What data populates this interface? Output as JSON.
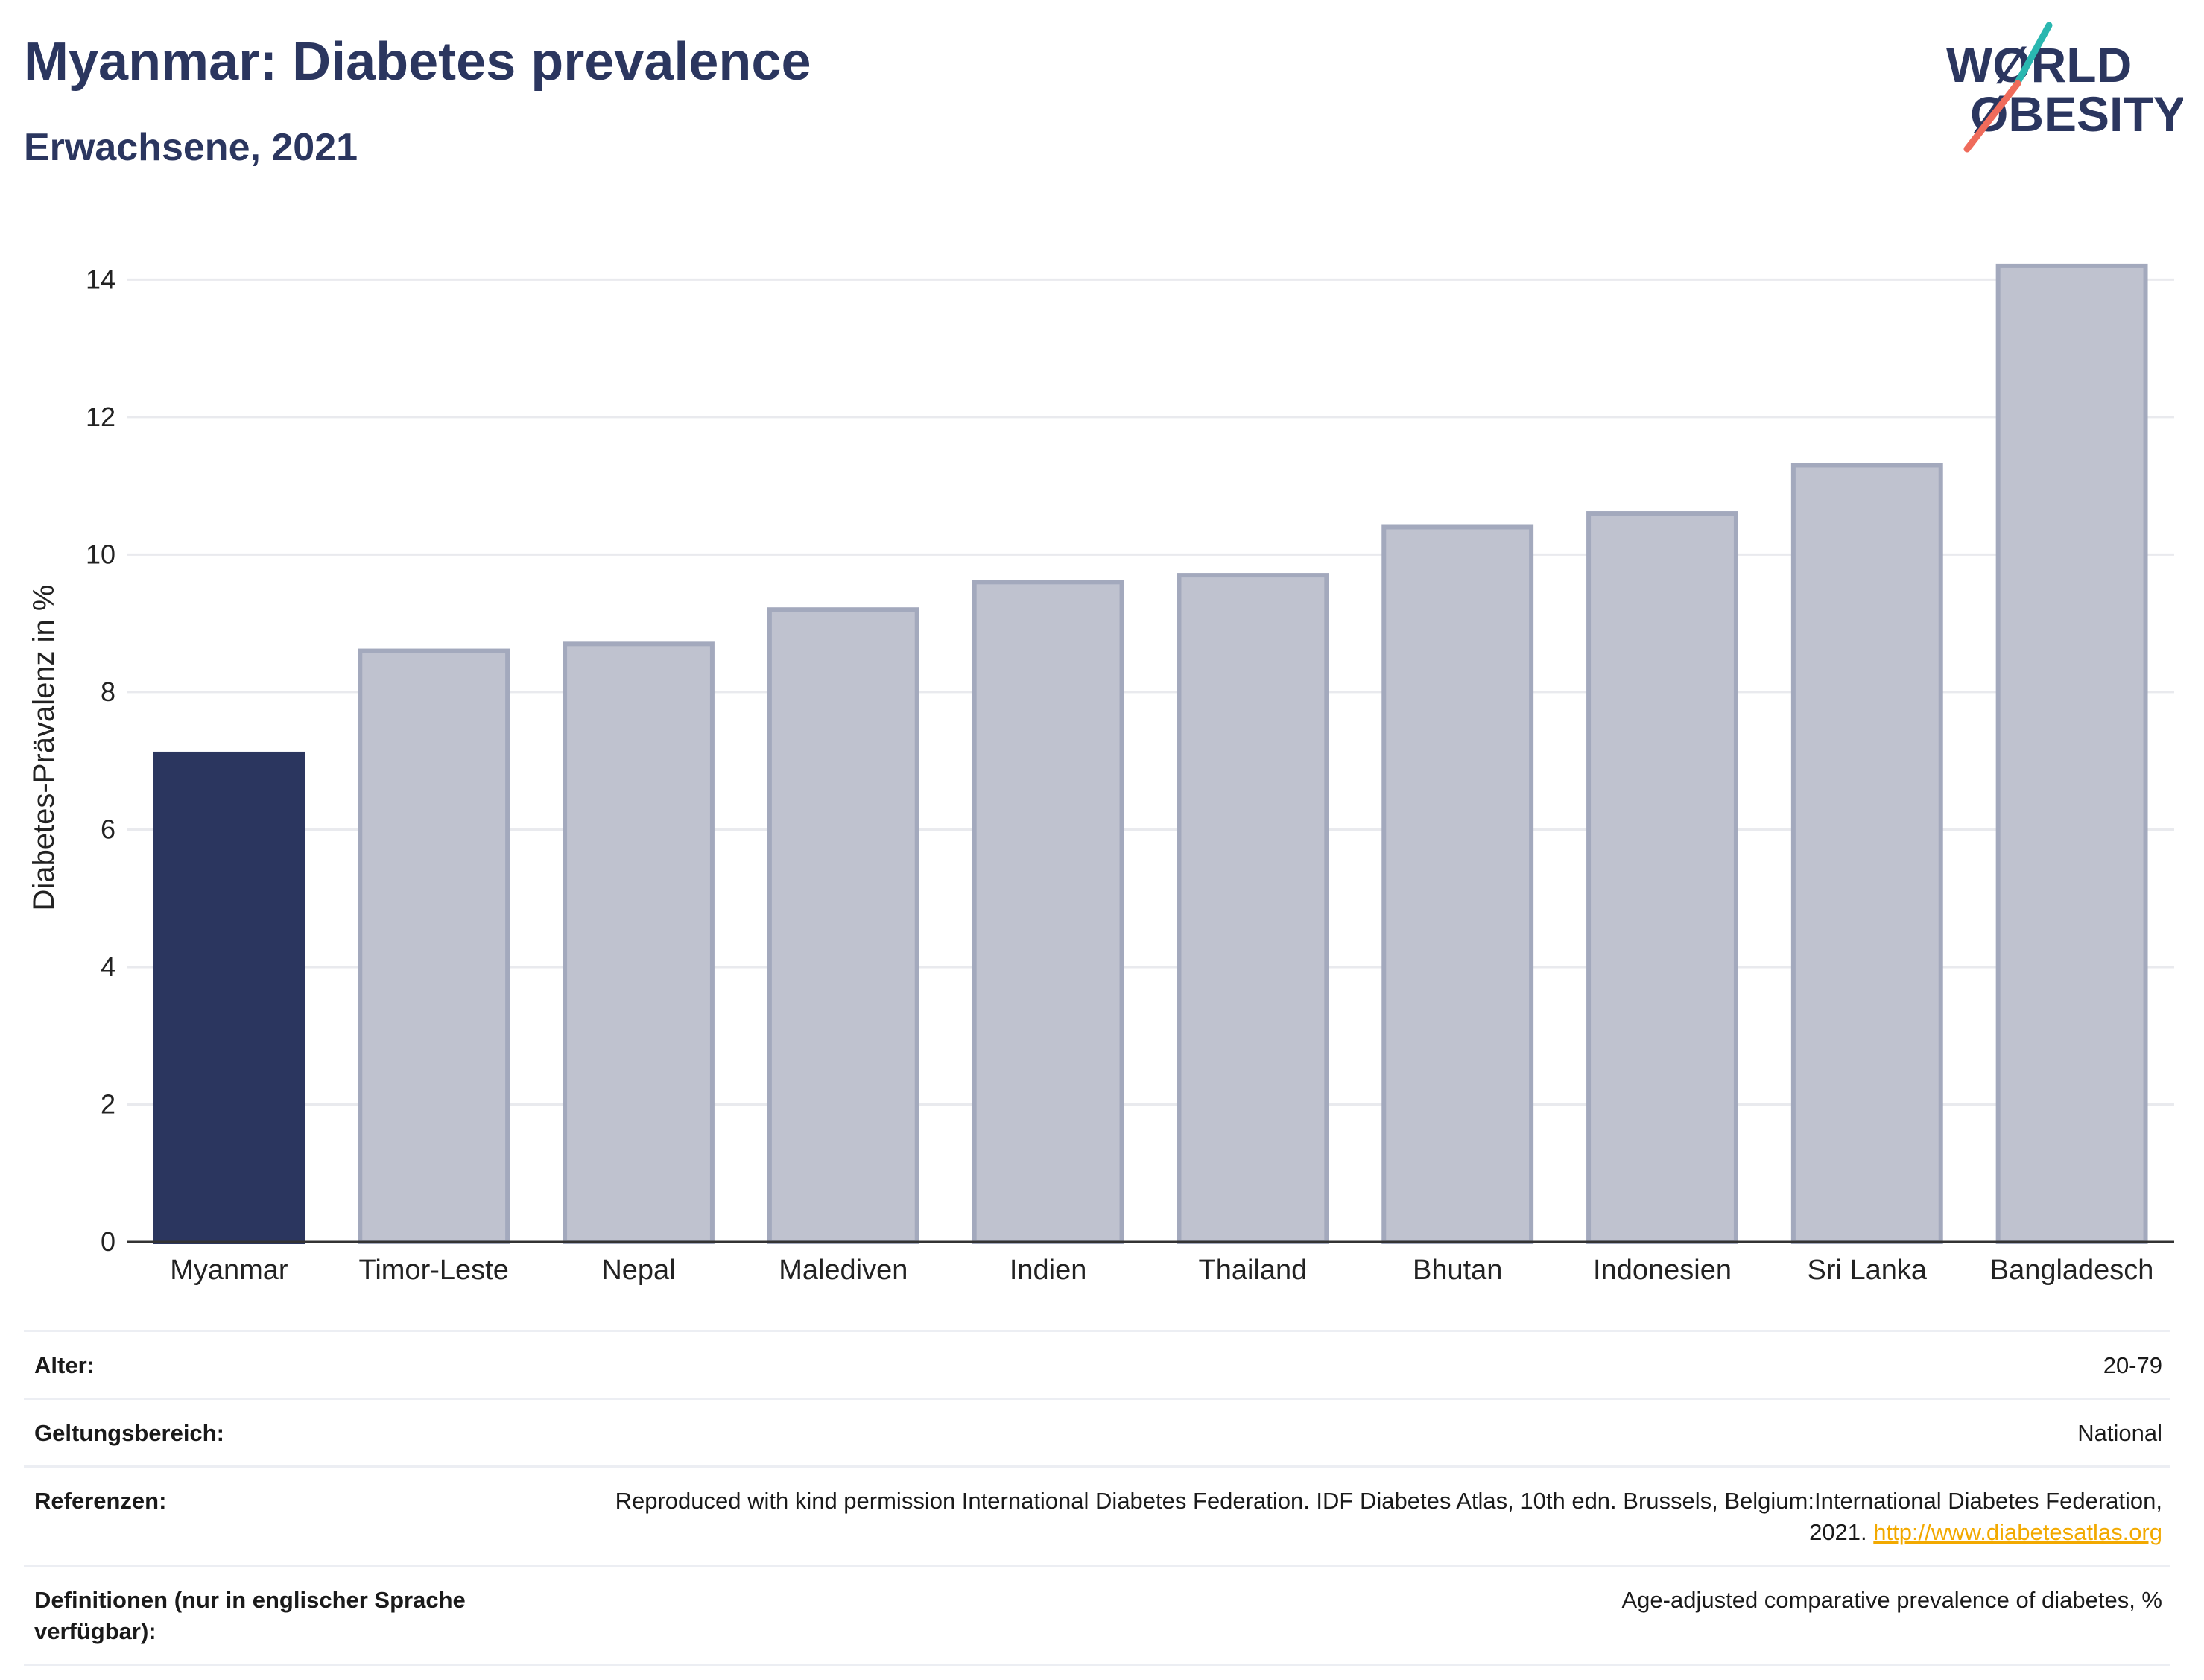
{
  "header": {
    "title": "Myanmar: Diabetes prevalence",
    "subtitle": "Erwachsene, 2021"
  },
  "logo": {
    "line1": "WØRLD",
    "line2": "ØBESITY",
    "accent_teal": "#2ab7b0",
    "accent_coral": "#ef6b5b",
    "text_color": "#2b365f"
  },
  "chart_data": {
    "type": "bar",
    "categories": [
      "Myanmar",
      "Timor-Leste",
      "Nepal",
      "Malediven",
      "Indien",
      "Thailand",
      "Bhutan",
      "Indonesien",
      "Sri Lanka",
      "Bangladesch"
    ],
    "values": [
      7.1,
      8.6,
      8.7,
      9.2,
      9.6,
      9.7,
      10.4,
      10.6,
      11.3,
      14.2
    ],
    "highlight_index": 0,
    "ylabel": "Diabetes-Prävalenz in %",
    "xlabel": "",
    "ylim": [
      0,
      14.6
    ],
    "yticks": [
      0,
      2,
      4,
      6,
      8,
      10,
      12,
      14
    ],
    "grid": true,
    "colors": {
      "highlight": "#2b365f",
      "others_fill": "#bfc2cf",
      "others_stroke": "#a3a9bd",
      "grid": "#e9eaee",
      "axis": "#333333"
    }
  },
  "meta": {
    "rows": [
      {
        "label": "Alter:",
        "value": "20-79"
      },
      {
        "label": "Geltungsbereich:",
        "value": "National"
      },
      {
        "label": "Referenzen:",
        "value": "Reproduced with kind permission International Diabetes Federation.  IDF Diabetes Atlas, 10th edn. Brussels, Belgium:International Diabetes Federation, 2021.",
        "link": "http://www.diabetesatlas.org"
      },
      {
        "label": "Definitionen (nur in englischer Sprache verfügbar):",
        "value": "Age-adjusted comparative prevalence of diabetes, %"
      }
    ]
  }
}
